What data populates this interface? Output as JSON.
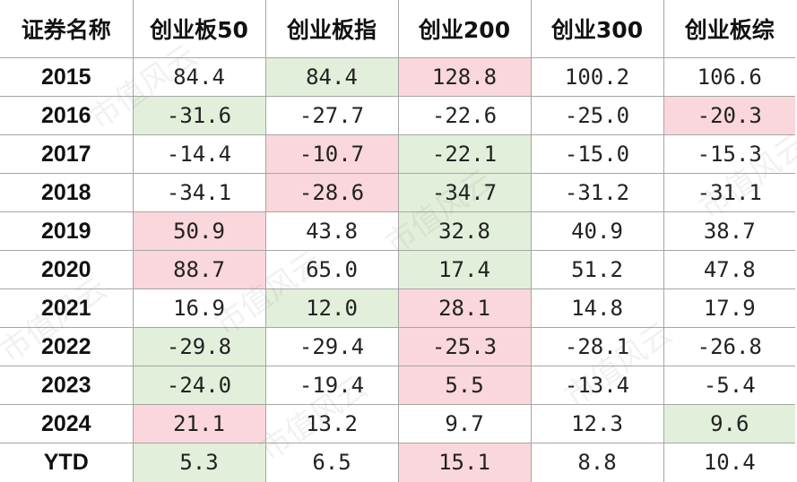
{
  "table": {
    "headers": [
      "证券名称",
      "创业板50",
      "创业板指",
      "创业200",
      "创业300",
      "创业板综"
    ],
    "rows": [
      {
        "label": "2015",
        "cells": [
          {
            "value": "84.4",
            "highlight": "none"
          },
          {
            "value": "84.4",
            "highlight": "green"
          },
          {
            "value": "128.8",
            "highlight": "red"
          },
          {
            "value": "100.2",
            "highlight": "none"
          },
          {
            "value": "106.6",
            "highlight": "none"
          }
        ]
      },
      {
        "label": "2016",
        "cells": [
          {
            "value": "-31.6",
            "highlight": "green"
          },
          {
            "value": "-27.7",
            "highlight": "none"
          },
          {
            "value": "-22.6",
            "highlight": "none"
          },
          {
            "value": "-25.0",
            "highlight": "none"
          },
          {
            "value": "-20.3",
            "highlight": "red"
          }
        ]
      },
      {
        "label": "2017",
        "cells": [
          {
            "value": "-14.4",
            "highlight": "none"
          },
          {
            "value": "-10.7",
            "highlight": "red"
          },
          {
            "value": "-22.1",
            "highlight": "green"
          },
          {
            "value": "-15.0",
            "highlight": "none"
          },
          {
            "value": "-15.3",
            "highlight": "none"
          }
        ]
      },
      {
        "label": "2018",
        "cells": [
          {
            "value": "-34.1",
            "highlight": "none"
          },
          {
            "value": "-28.6",
            "highlight": "red"
          },
          {
            "value": "-34.7",
            "highlight": "green"
          },
          {
            "value": "-31.2",
            "highlight": "none"
          },
          {
            "value": "-31.1",
            "highlight": "none"
          }
        ]
      },
      {
        "label": "2019",
        "cells": [
          {
            "value": "50.9",
            "highlight": "red"
          },
          {
            "value": "43.8",
            "highlight": "none"
          },
          {
            "value": "32.8",
            "highlight": "green"
          },
          {
            "value": "40.9",
            "highlight": "none"
          },
          {
            "value": "38.7",
            "highlight": "none"
          }
        ]
      },
      {
        "label": "2020",
        "cells": [
          {
            "value": "88.7",
            "highlight": "red"
          },
          {
            "value": "65.0",
            "highlight": "none"
          },
          {
            "value": "17.4",
            "highlight": "green"
          },
          {
            "value": "51.2",
            "highlight": "none"
          },
          {
            "value": "47.8",
            "highlight": "none"
          }
        ]
      },
      {
        "label": "2021",
        "cells": [
          {
            "value": "16.9",
            "highlight": "none"
          },
          {
            "value": "12.0",
            "highlight": "green"
          },
          {
            "value": "28.1",
            "highlight": "red"
          },
          {
            "value": "14.8",
            "highlight": "none"
          },
          {
            "value": "17.9",
            "highlight": "none"
          }
        ]
      },
      {
        "label": "2022",
        "cells": [
          {
            "value": "-29.8",
            "highlight": "green"
          },
          {
            "value": "-29.4",
            "highlight": "none"
          },
          {
            "value": "-25.3",
            "highlight": "red"
          },
          {
            "value": "-28.1",
            "highlight": "none"
          },
          {
            "value": "-26.8",
            "highlight": "none"
          }
        ]
      },
      {
        "label": "2023",
        "cells": [
          {
            "value": "-24.0",
            "highlight": "green"
          },
          {
            "value": "-19.4",
            "highlight": "none"
          },
          {
            "value": "5.5",
            "highlight": "red"
          },
          {
            "value": "-13.4",
            "highlight": "none"
          },
          {
            "value": "-5.4",
            "highlight": "none"
          }
        ]
      },
      {
        "label": "2024",
        "cells": [
          {
            "value": "21.1",
            "highlight": "red"
          },
          {
            "value": "13.2",
            "highlight": "none"
          },
          {
            "value": "9.7",
            "highlight": "none"
          },
          {
            "value": "12.3",
            "highlight": "none"
          },
          {
            "value": "9.6",
            "highlight": "green"
          }
        ]
      },
      {
        "label": "YTD",
        "cells": [
          {
            "value": "5.3",
            "highlight": "green"
          },
          {
            "value": "6.5",
            "highlight": "none"
          },
          {
            "value": "15.1",
            "highlight": "red"
          },
          {
            "value": "8.8",
            "highlight": "none"
          },
          {
            "value": "10.4",
            "highlight": "none"
          }
        ]
      }
    ]
  },
  "colors": {
    "highlight_red": "#f9d7dc",
    "highlight_green": "#e2efda",
    "border": "#a6a6a6"
  },
  "watermark": {
    "text": "市值风云"
  }
}
